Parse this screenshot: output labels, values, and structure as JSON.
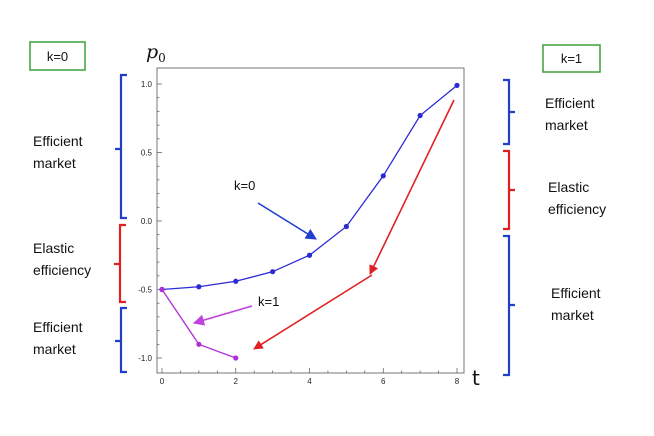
{
  "chart_data": {
    "type": "line",
    "ylabel": "p",
    "ylabel_sub": "0",
    "xlabel": "t",
    "xlim": [
      0,
      8
    ],
    "ylim": [
      -1.05,
      1.05
    ],
    "x_ticks": [
      0,
      2,
      4,
      6,
      8
    ],
    "y_ticks": [
      1.0,
      0.5,
      0.0,
      -0.5,
      -1.0
    ],
    "y_tick_labels": [
      "1.0",
      "0.5",
      "0.0",
      "-0.5",
      "-1.0"
    ],
    "grid": false,
    "series": [
      {
        "name": "k=0",
        "color": "#2b2bd6",
        "x": [
          0,
          1,
          2,
          3,
          4,
          5,
          6,
          7,
          8
        ],
        "y": [
          -0.5,
          -0.48,
          -0.44,
          -0.37,
          -0.25,
          -0.04,
          0.33,
          0.77,
          0.99
        ]
      },
      {
        "name": "k=1",
        "color": "#b030d8",
        "x": [
          0,
          1,
          2
        ],
        "y": [
          -0.5,
          -0.9,
          -1.0
        ]
      }
    ],
    "annotations": [
      {
        "text": "k=0",
        "arrow_color": "#1e3fd0"
      },
      {
        "text": "k=1",
        "arrow_color": "#c040e0"
      }
    ]
  },
  "left_panel": {
    "box_label": "k=0",
    "regions": [
      {
        "lines": [
          "Efficient",
          "market"
        ],
        "bracket_color": "#1f3fc8"
      },
      {
        "lines": [
          "Elastic",
          "efficiency"
        ],
        "bracket_color": "#e02020"
      },
      {
        "lines": [
          "Efficient",
          "market"
        ],
        "bracket_color": "#1f3fc8"
      }
    ]
  },
  "right_panel": {
    "box_label": "k=1",
    "regions": [
      {
        "lines": [
          "Efficient",
          "market"
        ],
        "bracket_color": "#1f3fc8"
      },
      {
        "lines": [
          "Elastic",
          "efficiency"
        ],
        "bracket_color": "#e02020"
      },
      {
        "lines": [
          "Efficient",
          "market"
        ],
        "bracket_color": "#1f3fc8"
      }
    ]
  },
  "colors": {
    "box_border": "#3aa03a",
    "trend_arrow": "#e02020"
  }
}
